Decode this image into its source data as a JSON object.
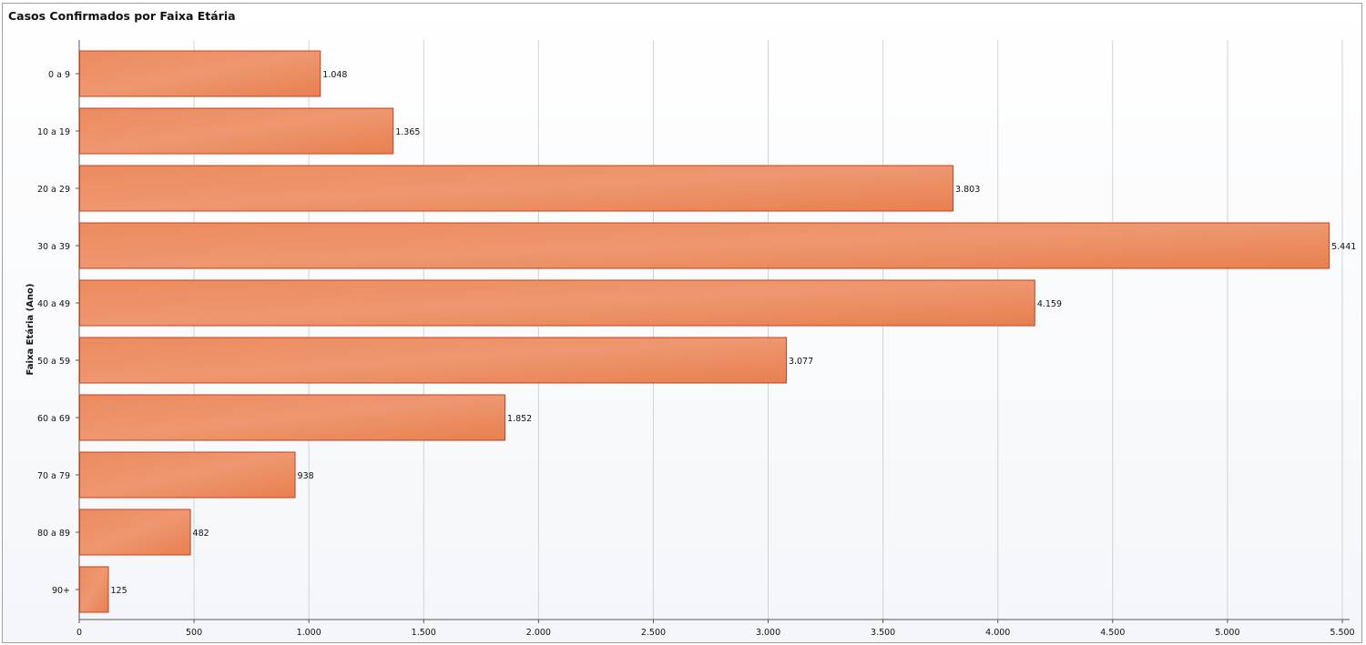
{
  "chart_data": {
    "type": "bar",
    "orientation": "horizontal",
    "title": "Casos Confirmados por Faixa Etária",
    "ylabel": "Faixa Etária (Ano)",
    "xlabel": "",
    "categories": [
      "0 a 9",
      "10 a 19",
      "20 a 29",
      "30 a 39",
      "40 a 49",
      "50 a 59",
      "60 a 69",
      "70 a 79",
      "80 a 89",
      "90+"
    ],
    "values": [
      1048,
      1365,
      3803,
      5441,
      4159,
      3077,
      1852,
      938,
      482,
      125
    ],
    "value_labels": [
      "1.048",
      "1.365",
      "3.803",
      "5.441",
      "4.159",
      "3.077",
      "1.852",
      "938",
      "482",
      "125"
    ],
    "xlim": [
      0,
      5500
    ],
    "x_ticks": [
      0,
      500,
      1000,
      1500,
      2000,
      2500,
      3000,
      3500,
      4000,
      4500,
      5000,
      5500
    ],
    "x_tick_labels": [
      "0",
      "500",
      "1.000",
      "1.500",
      "2.000",
      "2.500",
      "3.000",
      "3.500",
      "4.000",
      "4.500",
      "5.000",
      "5.500"
    ],
    "grid": "vertical",
    "legend": "none",
    "colors": {
      "bar_fill": "#ea8a5c",
      "bar_stroke": "#c9401b",
      "grid": "#cfd3d8",
      "axis": "#555555"
    }
  }
}
